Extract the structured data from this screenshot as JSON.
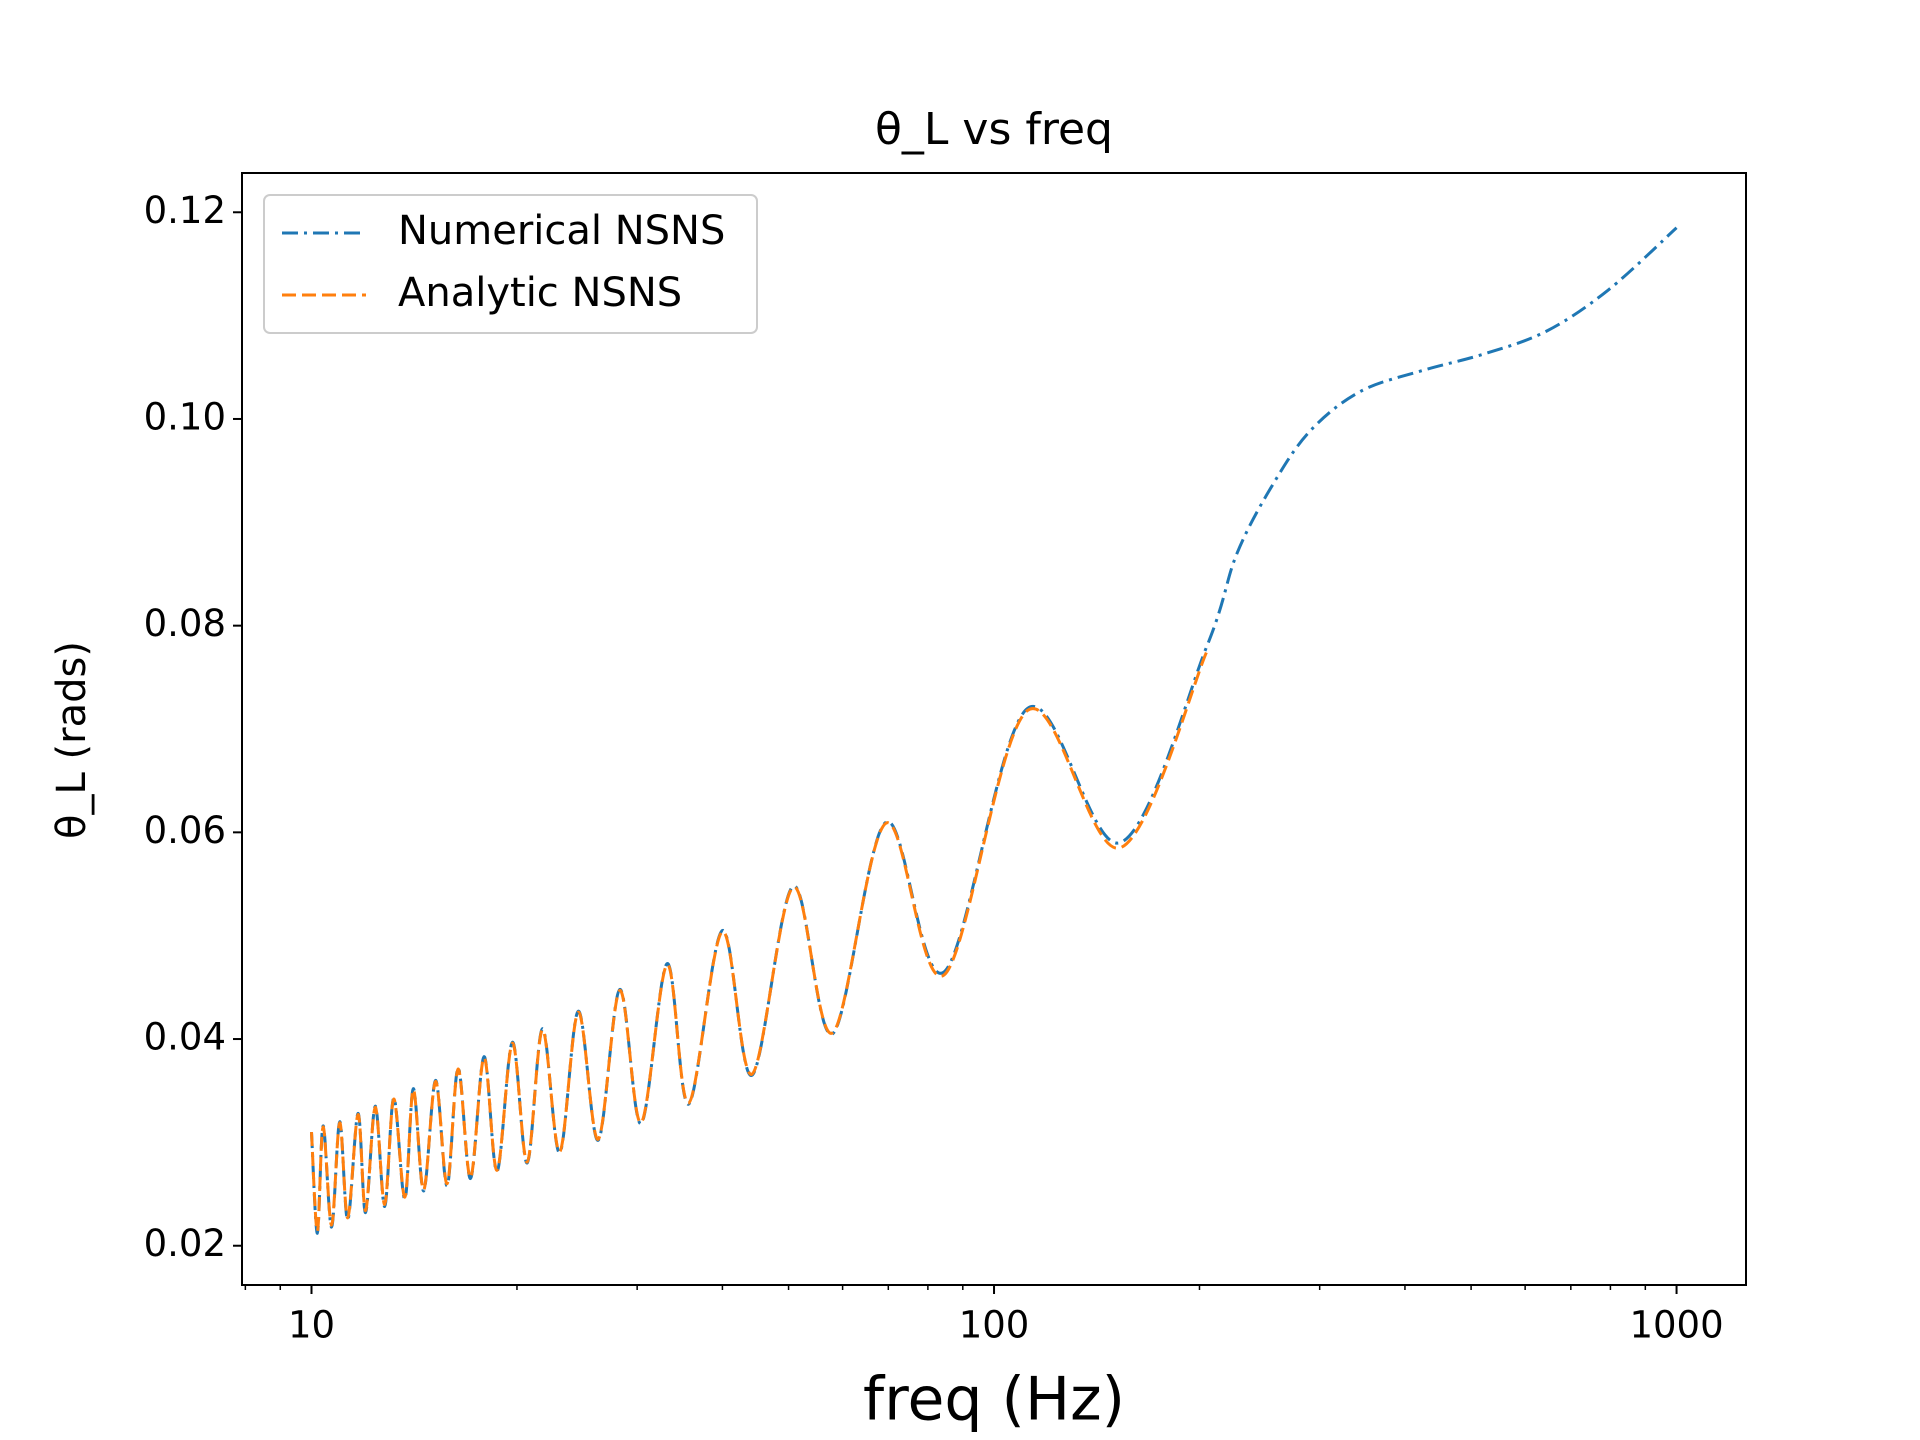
{
  "chart_data": {
    "type": "line",
    "title": "θ_L vs freq",
    "xlabel": "freq (Hz)",
    "ylabel": "θ_L (rads)",
    "xscale": "log",
    "xlim": [
      7.91,
      1264
    ],
    "ylim": [
      0.0162,
      0.1238
    ],
    "xticks": [
      10,
      100,
      1000
    ],
    "xminorticks": [
      8,
      9,
      20,
      30,
      40,
      50,
      60,
      70,
      80,
      90,
      200,
      300,
      400,
      500,
      600,
      700,
      800,
      900
    ],
    "yticks": [
      0.02,
      0.04,
      0.06,
      0.08,
      {
        "value": 0.1,
        "label": "0.10"
      },
      0.12
    ],
    "legend": "upper left",
    "grid": false,
    "series": [
      {
        "name": "Numerical NSNS",
        "color": "#1f77b4",
        "dash": "dashdot",
        "x": [
          10,
          10.2,
          10.4,
          10.7,
          11.0,
          11.3,
          11.7,
          12.0,
          12.4,
          12.8,
          13.2,
          13.7,
          14.1,
          14.6,
          15.2,
          15.8,
          16.4,
          17.1,
          17.9,
          18.7,
          19.7,
          20.7,
          21.8,
          23.1,
          24.6,
          26.3,
          28.3,
          30.4,
          33.2,
          35.7,
          40,
          44.2,
          50.8,
          58,
          69.5,
          84.5,
          112,
          153,
          205,
          227,
          258,
          292,
          345,
          425,
          523,
          645,
          795,
          1000
        ],
        "values": [
          0.031,
          0.0212,
          0.0316,
          0.0218,
          0.032,
          0.0225,
          0.0328,
          0.0232,
          0.0335,
          0.0238,
          0.0343,
          0.0245,
          0.0352,
          0.0253,
          0.036,
          0.0258,
          0.0372,
          0.0265,
          0.0383,
          0.0272,
          0.0397,
          0.028,
          0.041,
          0.029,
          0.0427,
          0.0302,
          0.0448,
          0.0318,
          0.0473,
          0.0337,
          0.0505,
          0.0365,
          0.0548,
          0.0405,
          0.061,
          0.0465,
          0.072,
          0.059,
          0.078,
          0.087,
          0.094,
          0.099,
          0.1027,
          0.1047,
          0.1063,
          0.1085,
          0.1125,
          0.1185
        ]
      },
      {
        "name": "Analytic NSNS",
        "color": "#ff7f0e",
        "dash": "dashed",
        "x": [
          10,
          10.2,
          10.4,
          10.7,
          11.0,
          11.3,
          11.7,
          12.0,
          12.4,
          12.8,
          13.2,
          13.7,
          14.1,
          14.6,
          15.2,
          15.8,
          16.4,
          17.1,
          17.9,
          18.7,
          19.7,
          20.7,
          21.8,
          23.1,
          24.6,
          26.3,
          28.3,
          30.4,
          33.2,
          35.7,
          40,
          44.2,
          50.8,
          58,
          69.5,
          84.5,
          112,
          153,
          205
        ],
        "values": [
          0.031,
          0.0214,
          0.0315,
          0.022,
          0.0319,
          0.0227,
          0.0327,
          0.0234,
          0.0334,
          0.024,
          0.0342,
          0.0247,
          0.0351,
          0.0254,
          0.0359,
          0.026,
          0.0371,
          0.0266,
          0.0382,
          0.0273,
          0.0396,
          0.0281,
          0.0409,
          0.0291,
          0.0426,
          0.0303,
          0.0447,
          0.0319,
          0.0472,
          0.0338,
          0.0504,
          0.0366,
          0.0547,
          0.0406,
          0.0609,
          0.0462,
          0.0718,
          0.0585,
          0.0775
        ]
      }
    ]
  }
}
